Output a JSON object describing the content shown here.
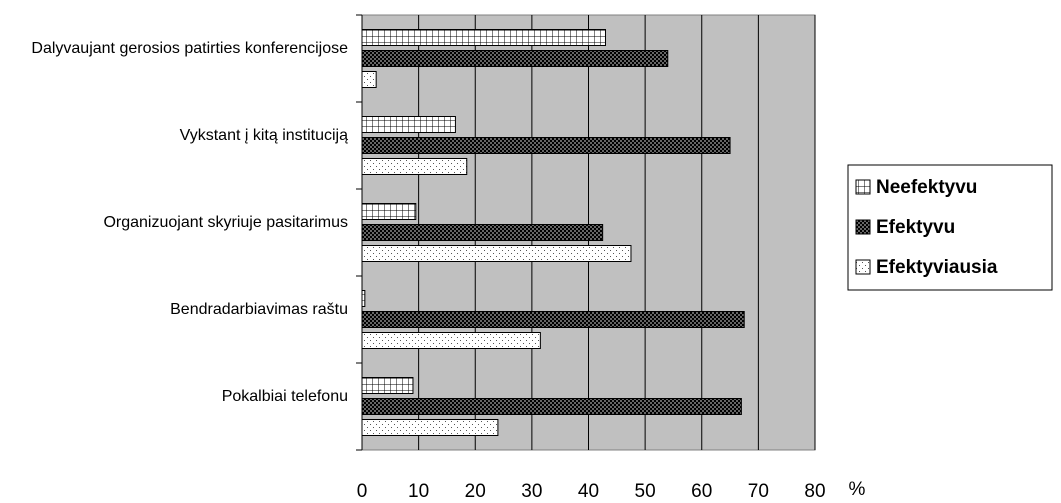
{
  "chart_data": {
    "type": "hbar",
    "categories": [
      "Dalyvaujant gerosios patirties konferencijose",
      "Vykstant į kitą instituciją",
      "Organizuojant skyriuje pasitarimus",
      "Bendradarbiavimas raštu",
      "Pokalbiai telefonu"
    ],
    "series": [
      {
        "name": "Neefektyvu",
        "color": "#ffffff",
        "pattern": "grid",
        "values": [
          43,
          16.5,
          9.5,
          0.5,
          9
        ]
      },
      {
        "name": "Efektyvu",
        "color": "#333333",
        "pattern": "checker",
        "values": [
          54,
          65,
          42.5,
          67.5,
          67
        ]
      },
      {
        "name": "Efektyviausia",
        "color": "#ffffff",
        "pattern": "dots",
        "values": [
          2.5,
          18.5,
          47.5,
          31.5,
          24
        ]
      }
    ],
    "xlabel": "%",
    "xlim": [
      0,
      80
    ],
    "xticks": [
      0,
      10,
      20,
      30,
      40,
      50,
      60,
      70,
      80
    ],
    "grid": true,
    "legend": "right"
  }
}
